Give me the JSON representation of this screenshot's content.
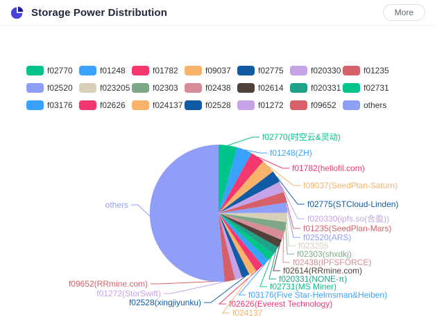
{
  "header": {
    "title": "Storage Power Distribution",
    "more_label": "More",
    "icon_colors": {
      "main": "#4544d8",
      "wedge": "#1a1a9c"
    }
  },
  "chart_data": {
    "type": "pie",
    "title": "Storage Power Distribution",
    "legend_position": "top",
    "values_unit": "percent share of storage power (estimated from slice angles; no numeric labels shown on chart)",
    "slices": [
      {
        "id": "f02770",
        "label": "f02770(时空云&灵动)",
        "value": 4.4,
        "color": "#00c48a"
      },
      {
        "id": "f01248",
        "label": "f01248(ZH)",
        "value": 3.6,
        "color": "#3ba1ff"
      },
      {
        "id": "f01782",
        "label": "f01782(hellofil.com)",
        "value": 3.3,
        "color": "#f2386e"
      },
      {
        "id": "f09037",
        "label": "f09037(SeedPlan-Saturn)",
        "value": 3.3,
        "color": "#f8b26a"
      },
      {
        "id": "f02775",
        "label": "f02775(STCloud-Linden)",
        "value": 2.8,
        "color": "#115ba4"
      },
      {
        "id": "f020330",
        "label": "f020330(ipfs.so(合盈))",
        "value": 2.6,
        "color": "#c5a3e6"
      },
      {
        "id": "f01235",
        "label": "f01235(SeedPlan-Mars)",
        "value": 2.5,
        "color": "#d5606a"
      },
      {
        "id": "f02520",
        "label": "f02520(ARS)",
        "value": 2.4,
        "color": "#8f9ef6"
      },
      {
        "id": "f023205",
        "label": "f023205",
        "value": 2.2,
        "color": "#d8cfb9"
      },
      {
        "id": "f02303",
        "label": "f02303(shxdkj)",
        "value": 2.2,
        "color": "#7ea885"
      },
      {
        "id": "f02438",
        "label": "f02438(IPFSFORCE)",
        "value": 2.1,
        "color": "#d68d98"
      },
      {
        "id": "f02614",
        "label": "f02614(RRmine.com)",
        "value": 1.9,
        "color": "#50413a"
      },
      {
        "id": "f020331",
        "label": "f020331(NONE-π)",
        "value": 1.8,
        "color": "#20a28a"
      },
      {
        "id": "f02731",
        "label": "f02731(MS Miner)",
        "value": 1.9,
        "color": "#00c48a"
      },
      {
        "id": "f03176",
        "label": "f03176(Five Star-Helmsman&Heiben)",
        "value": 1.9,
        "color": "#3ba1ff"
      },
      {
        "id": "f02626",
        "label": "f02626(Everest Technology)",
        "value": 1.9,
        "color": "#f2386e"
      },
      {
        "id": "f024137",
        "label": "f024137",
        "value": 1.8,
        "color": "#f8b26a"
      },
      {
        "id": "f02528",
        "label": "f02528(xingjiyunku)",
        "value": 1.8,
        "color": "#115ba4"
      },
      {
        "id": "f01272",
        "label": "f01272(StorSwift)",
        "value": 1.7,
        "color": "#c5a3e6"
      },
      {
        "id": "f09652",
        "label": "f09652(RRmine.com)",
        "value": 2.5,
        "color": "#d5606a"
      },
      {
        "id": "others",
        "label": "others",
        "value": 51.4,
        "color": "#8f9ef6"
      }
    ]
  }
}
